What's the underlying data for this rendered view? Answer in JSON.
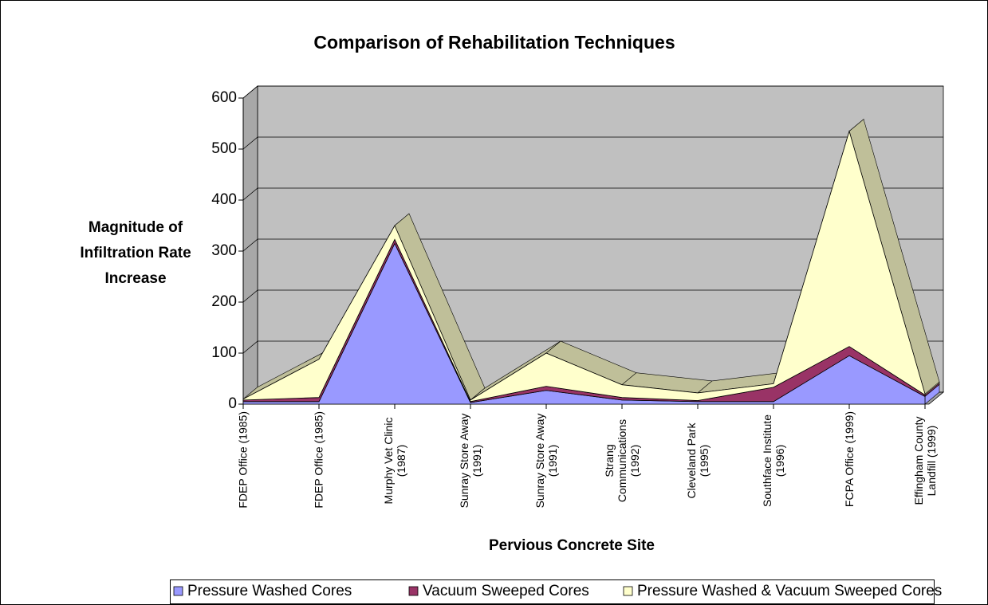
{
  "chart_data": {
    "type": "area",
    "stacked": true,
    "title": "Comparison of Rehabilitation Techniques",
    "xlabel": "Pervious Concrete Site",
    "ylabel": "Magnitude of Infiltration Rate Increase",
    "categories": [
      "FDEP Office (1985)",
      "FDEP Office (1985)",
      "Murphy Vet Clinic (1987)",
      "Sunray Store Away (1991)",
      "Sunray Store Away (1991)",
      "Strang Communications (1992)",
      "Cleveland Park (1995)",
      "Southface Institute (1996)",
      "FCPA Office (1999)",
      "Effingham County Landfill (1999)"
    ],
    "series": [
      {
        "name": "Pressure Washed Cores",
        "color": "#9999ff",
        "values": [
          5,
          5,
          315,
          3,
          27,
          8,
          5,
          5,
          95,
          15
        ]
      },
      {
        "name": "Vacuum Sweeped Cores",
        "color": "#993366",
        "values": [
          3,
          8,
          8,
          2,
          8,
          5,
          2,
          28,
          18,
          3
        ]
      },
      {
        "name": "Pressure Washed & Vacuum Sweeped Cores",
        "color": "#ffffcc",
        "values": [
          2,
          75,
          27,
          3,
          65,
          25,
          15,
          7,
          422,
          2
        ]
      }
    ],
    "ylim": [
      0,
      600
    ],
    "yticks": [
      0,
      100,
      200,
      300,
      400,
      500,
      600
    ],
    "grid": true,
    "legend": "bottom"
  }
}
